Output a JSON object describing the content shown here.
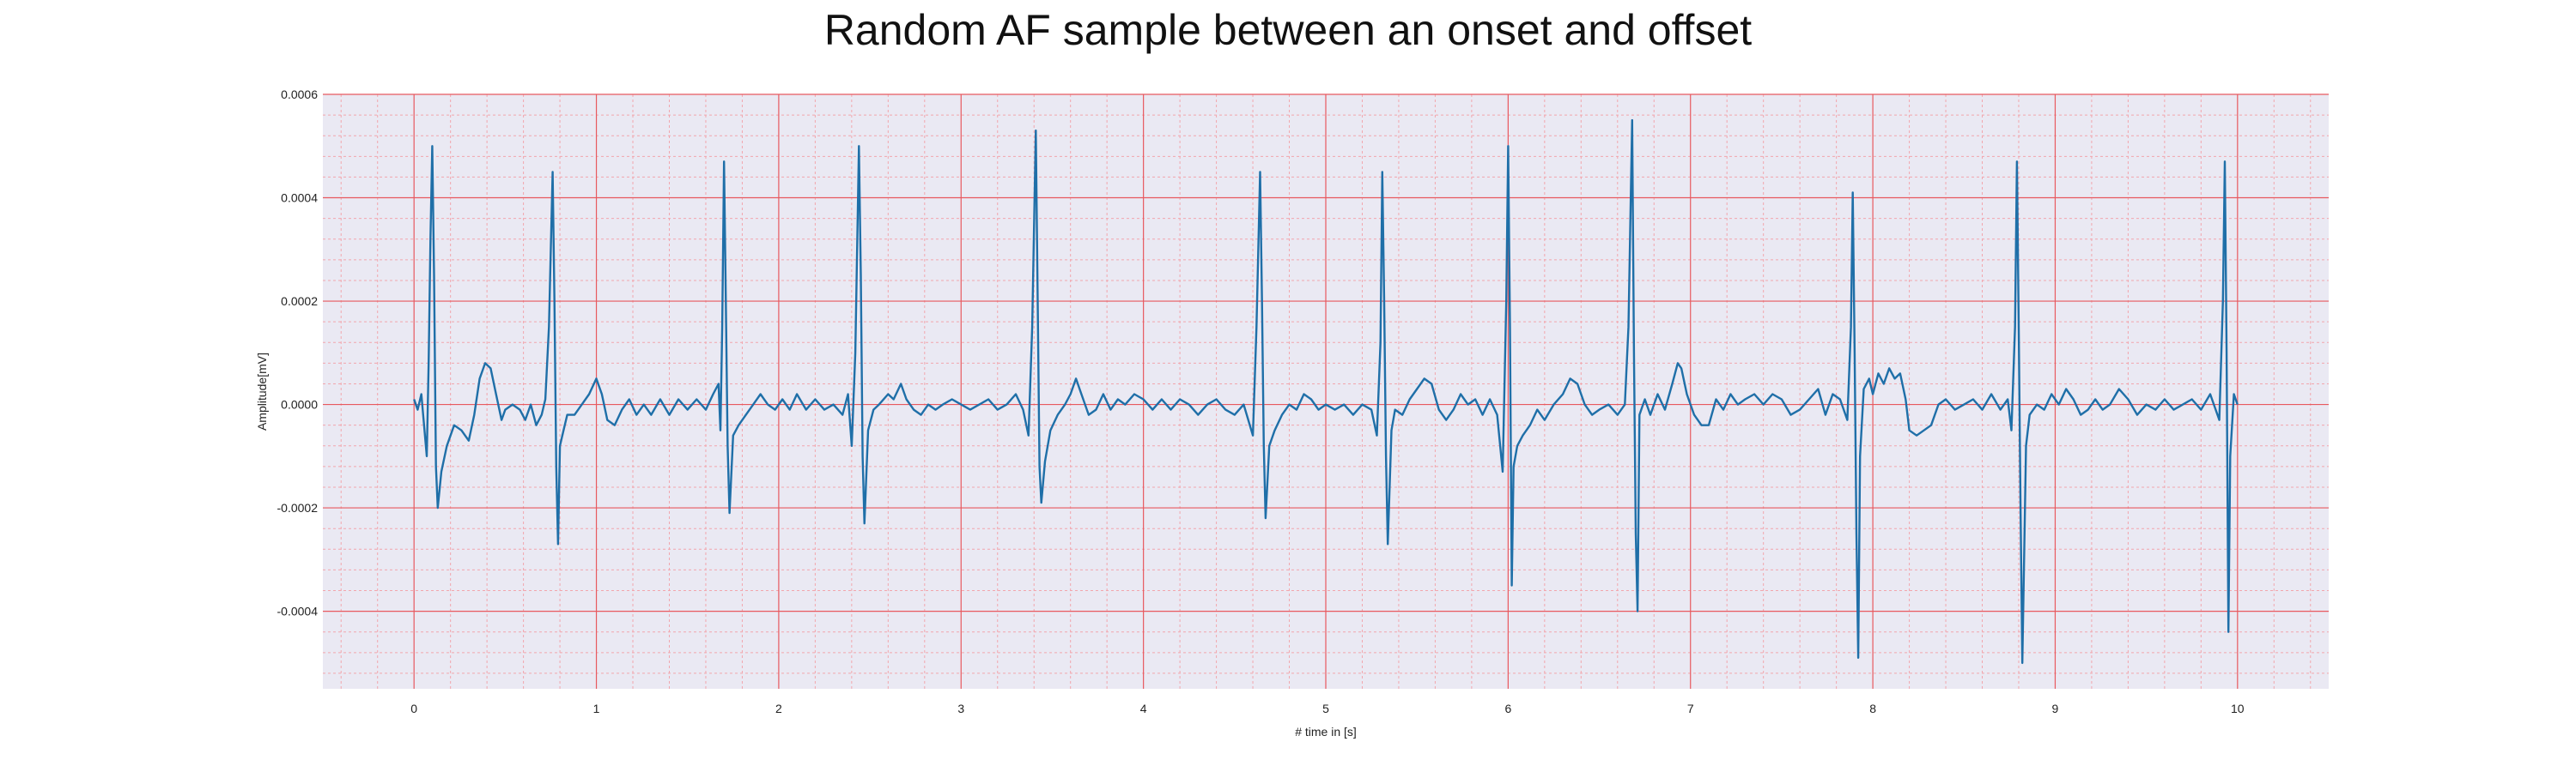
{
  "chart_data": {
    "type": "line",
    "title": "Random AF sample between an onset and offset",
    "xlabel": "# time in [s]",
    "ylabel": "Amplitude[mV]",
    "xlim": [
      -0.5,
      10.5
    ],
    "ylim": [
      -0.00055,
      0.0006
    ],
    "x_ticks": [
      0,
      1,
      2,
      3,
      4,
      5,
      6,
      7,
      8,
      9,
      10
    ],
    "x_tick_labels": [
      "0",
      "1",
      "2",
      "3",
      "4",
      "5",
      "6",
      "7",
      "8",
      "9",
      "10"
    ],
    "y_ticks": [
      0.0006,
      0.0004,
      0.0002,
      0.0,
      -0.0002,
      -0.0004
    ],
    "y_tick_labels": [
      "0.0006",
      "0.0004",
      "0.0002",
      "0.0000",
      "-0.0002",
      "-0.0004"
    ],
    "grid": true,
    "minor_grid": true,
    "colors": {
      "background": "#eae9f3",
      "major_grid": "#e8595f",
      "minor_grid": "#f2a6ad",
      "line": "#1f6fa8"
    },
    "series": [
      {
        "points": [
          [
            0.0,
            1e-05
          ],
          [
            0.02,
            -1e-05
          ],
          [
            0.04,
            2e-05
          ],
          [
            0.06,
            -6e-05
          ],
          [
            0.07,
            -0.0001
          ],
          [
            0.08,
            8e-05
          ],
          [
            0.09,
            0.00032
          ],
          [
            0.1,
            0.0005
          ],
          [
            0.11,
            0.00025
          ],
          [
            0.12,
            -0.00012
          ],
          [
            0.13,
            -0.0002
          ],
          [
            0.15,
            -0.00013
          ],
          [
            0.18,
            -8e-05
          ],
          [
            0.22,
            -4e-05
          ],
          [
            0.26,
            -5e-05
          ],
          [
            0.3,
            -7e-05
          ],
          [
            0.33,
            -2e-05
          ],
          [
            0.36,
            5e-05
          ],
          [
            0.39,
            8e-05
          ],
          [
            0.42,
            7e-05
          ],
          [
            0.45,
            2e-05
          ],
          [
            0.48,
            -3e-05
          ],
          [
            0.5,
            -1e-05
          ],
          [
            0.54,
            0.0
          ],
          [
            0.58,
            -1e-05
          ],
          [
            0.61,
            -3e-05
          ],
          [
            0.64,
            0.0
          ],
          [
            0.67,
            -4e-05
          ],
          [
            0.7,
            -2e-05
          ],
          [
            0.72,
            1e-05
          ],
          [
            0.74,
            0.00015
          ],
          [
            0.76,
            0.00045
          ],
          [
            0.77,
            0.0002
          ],
          [
            0.78,
            -0.00012
          ],
          [
            0.79,
            -0.00027
          ],
          [
            0.8,
            -8e-05
          ],
          [
            0.82,
            -5e-05
          ],
          [
            0.84,
            -2e-05
          ],
          [
            0.88,
            -2e-05
          ],
          [
            0.92,
            0.0
          ],
          [
            0.96,
            2e-05
          ],
          [
            1.0,
            5e-05
          ],
          [
            1.03,
            2e-05
          ],
          [
            1.06,
            -3e-05
          ],
          [
            1.1,
            -4e-05
          ],
          [
            1.14,
            -1e-05
          ],
          [
            1.18,
            1e-05
          ],
          [
            1.22,
            -2e-05
          ],
          [
            1.26,
            0.0
          ],
          [
            1.3,
            -2e-05
          ],
          [
            1.35,
            1e-05
          ],
          [
            1.4,
            -2e-05
          ],
          [
            1.45,
            1e-05
          ],
          [
            1.5,
            -1e-05
          ],
          [
            1.55,
            1e-05
          ],
          [
            1.6,
            -1e-05
          ],
          [
            1.64,
            2e-05
          ],
          [
            1.67,
            4e-05
          ],
          [
            1.68,
            -5e-05
          ],
          [
            1.69,
            0.00015
          ],
          [
            1.7,
            0.00047
          ],
          [
            1.71,
            0.0002
          ],
          [
            1.72,
            -8e-05
          ],
          [
            1.73,
            -0.00021
          ],
          [
            1.75,
            -6e-05
          ],
          [
            1.78,
            -4e-05
          ],
          [
            1.82,
            -2e-05
          ],
          [
            1.86,
            0.0
          ],
          [
            1.9,
            2e-05
          ],
          [
            1.94,
            0.0
          ],
          [
            1.98,
            -1e-05
          ],
          [
            2.02,
            1e-05
          ],
          [
            2.06,
            -1e-05
          ],
          [
            2.1,
            2e-05
          ],
          [
            2.15,
            -1e-05
          ],
          [
            2.2,
            1e-05
          ],
          [
            2.25,
            -1e-05
          ],
          [
            2.3,
            0.0
          ],
          [
            2.35,
            -2e-05
          ],
          [
            2.38,
            2e-05
          ],
          [
            2.4,
            -8e-05
          ],
          [
            2.42,
            0.0001
          ],
          [
            2.44,
            0.0005
          ],
          [
            2.45,
            0.00025
          ],
          [
            2.46,
            -0.0001
          ],
          [
            2.47,
            -0.00023
          ],
          [
            2.49,
            -5e-05
          ],
          [
            2.52,
            -1e-05
          ],
          [
            2.55,
            0.0
          ],
          [
            2.6,
            2e-05
          ],
          [
            2.63,
            1e-05
          ],
          [
            2.67,
            4e-05
          ],
          [
            2.7,
            1e-05
          ],
          [
            2.74,
            -1e-05
          ],
          [
            2.78,
            -2e-05
          ],
          [
            2.82,
            0.0
          ],
          [
            2.86,
            -1e-05
          ],
          [
            2.9,
            0.0
          ],
          [
            2.95,
            1e-05
          ],
          [
            3.0,
            0.0
          ],
          [
            3.05,
            -1e-05
          ],
          [
            3.1,
            0.0
          ],
          [
            3.15,
            1e-05
          ],
          [
            3.2,
            -1e-05
          ],
          [
            3.25,
            0.0
          ],
          [
            3.3,
            2e-05
          ],
          [
            3.34,
            -1e-05
          ],
          [
            3.37,
            -6e-05
          ],
          [
            3.39,
            0.00015
          ],
          [
            3.41,
            0.00053
          ],
          [
            3.42,
            0.0002
          ],
          [
            3.43,
            -0.00012
          ],
          [
            3.44,
            -0.00019
          ],
          [
            3.46,
            -0.00011
          ],
          [
            3.49,
            -5e-05
          ],
          [
            3.53,
            -2e-05
          ],
          [
            3.57,
            0.0
          ],
          [
            3.6,
            2e-05
          ],
          [
            3.63,
            5e-05
          ],
          [
            3.66,
            2e-05
          ],
          [
            3.7,
            -2e-05
          ],
          [
            3.74,
            -1e-05
          ],
          [
            3.78,
            2e-05
          ],
          [
            3.82,
            -1e-05
          ],
          [
            3.86,
            1e-05
          ],
          [
            3.9,
            0.0
          ],
          [
            3.95,
            2e-05
          ],
          [
            4.0,
            1e-05
          ],
          [
            4.05,
            -1e-05
          ],
          [
            4.1,
            1e-05
          ],
          [
            4.15,
            -1e-05
          ],
          [
            4.2,
            1e-05
          ],
          [
            4.25,
            0.0
          ],
          [
            4.3,
            -2e-05
          ],
          [
            4.35,
            0.0
          ],
          [
            4.4,
            1e-05
          ],
          [
            4.45,
            -1e-05
          ],
          [
            4.5,
            -2e-05
          ],
          [
            4.55,
            0.0
          ],
          [
            4.6,
            -6e-05
          ],
          [
            4.62,
            0.00015
          ],
          [
            4.64,
            0.00045
          ],
          [
            4.65,
            0.0002
          ],
          [
            4.66,
            -8e-05
          ],
          [
            4.67,
            -0.00022
          ],
          [
            4.69,
            -8e-05
          ],
          [
            4.72,
            -5e-05
          ],
          [
            4.76,
            -2e-05
          ],
          [
            4.8,
            0.0
          ],
          [
            4.84,
            -1e-05
          ],
          [
            4.88,
            2e-05
          ],
          [
            4.92,
            1e-05
          ],
          [
            4.96,
            -1e-05
          ],
          [
            5.0,
            0.0
          ],
          [
            5.05,
            -1e-05
          ],
          [
            5.1,
            0.0
          ],
          [
            5.15,
            -2e-05
          ],
          [
            5.2,
            0.0
          ],
          [
            5.25,
            -1e-05
          ],
          [
            5.28,
            -6e-05
          ],
          [
            5.3,
            0.00012
          ],
          [
            5.31,
            0.00045
          ],
          [
            5.32,
            0.0002
          ],
          [
            5.33,
            -0.0001
          ],
          [
            5.34,
            -0.00027
          ],
          [
            5.36,
            -5e-05
          ],
          [
            5.38,
            -1e-05
          ],
          [
            5.42,
            -2e-05
          ],
          [
            5.46,
            1e-05
          ],
          [
            5.5,
            3e-05
          ],
          [
            5.54,
            5e-05
          ],
          [
            5.58,
            4e-05
          ],
          [
            5.62,
            -1e-05
          ],
          [
            5.66,
            -3e-05
          ],
          [
            5.7,
            -1e-05
          ],
          [
            5.74,
            2e-05
          ],
          [
            5.78,
            0.0
          ],
          [
            5.82,
            1e-05
          ],
          [
            5.86,
            -2e-05
          ],
          [
            5.9,
            1e-05
          ],
          [
            5.94,
            -2e-05
          ],
          [
            5.97,
            -0.00013
          ],
          [
            5.99,
            0.0002
          ],
          [
            6.0,
            0.0005
          ],
          [
            6.01,
            0.00015
          ],
          [
            6.02,
            -0.00035
          ],
          [
            6.03,
            -0.00012
          ],
          [
            6.05,
            -8e-05
          ],
          [
            6.08,
            -6e-05
          ],
          [
            6.12,
            -4e-05
          ],
          [
            6.16,
            -1e-05
          ],
          [
            6.2,
            -3e-05
          ],
          [
            6.25,
            0.0
          ],
          [
            6.3,
            2e-05
          ],
          [
            6.34,
            5e-05
          ],
          [
            6.38,
            4e-05
          ],
          [
            6.42,
            0.0
          ],
          [
            6.46,
            -2e-05
          ],
          [
            6.5,
            -1e-05
          ],
          [
            6.55,
            0.0
          ],
          [
            6.6,
            -2e-05
          ],
          [
            6.64,
            0.0
          ],
          [
            6.66,
            0.00015
          ],
          [
            6.68,
            0.00055
          ],
          [
            6.69,
            0.0001
          ],
          [
            6.7,
            -0.00025
          ],
          [
            6.71,
            -0.0004
          ],
          [
            6.72,
            -2e-05
          ],
          [
            6.75,
            1e-05
          ],
          [
            6.78,
            -2e-05
          ],
          [
            6.82,
            2e-05
          ],
          [
            6.86,
            -1e-05
          ],
          [
            6.9,
            4e-05
          ],
          [
            6.93,
            8e-05
          ],
          [
            6.95,
            7e-05
          ],
          [
            6.98,
            2e-05
          ],
          [
            7.02,
            -2e-05
          ],
          [
            7.06,
            -4e-05
          ],
          [
            7.1,
            -4e-05
          ],
          [
            7.14,
            1e-05
          ],
          [
            7.18,
            -1e-05
          ],
          [
            7.22,
            2e-05
          ],
          [
            7.26,
            0.0
          ],
          [
            7.3,
            1e-05
          ],
          [
            7.35,
            2e-05
          ],
          [
            7.4,
            0.0
          ],
          [
            7.45,
            2e-05
          ],
          [
            7.5,
            1e-05
          ],
          [
            7.55,
            -2e-05
          ],
          [
            7.6,
            -1e-05
          ],
          [
            7.65,
            1e-05
          ],
          [
            7.7,
            3e-05
          ],
          [
            7.74,
            -2e-05
          ],
          [
            7.78,
            2e-05
          ],
          [
            7.82,
            1e-05
          ],
          [
            7.86,
            -3e-05
          ],
          [
            7.88,
            0.00015
          ],
          [
            7.89,
            0.00041
          ],
          [
            7.9,
            0.0001
          ],
          [
            7.91,
            -0.00025
          ],
          [
            7.92,
            -0.00049
          ],
          [
            7.93,
            -0.0001
          ],
          [
            7.95,
            3e-05
          ],
          [
            7.98,
            5e-05
          ],
          [
            8.0,
            2e-05
          ],
          [
            8.03,
            6e-05
          ],
          [
            8.06,
            4e-05
          ],
          [
            8.09,
            7e-05
          ],
          [
            8.12,
            5e-05
          ],
          [
            8.15,
            6e-05
          ],
          [
            8.18,
            1e-05
          ],
          [
            8.2,
            -5e-05
          ],
          [
            8.24,
            -6e-05
          ],
          [
            8.28,
            -5e-05
          ],
          [
            8.32,
            -4e-05
          ],
          [
            8.36,
            0.0
          ],
          [
            8.4,
            1e-05
          ],
          [
            8.45,
            -1e-05
          ],
          [
            8.5,
            0.0
          ],
          [
            8.55,
            1e-05
          ],
          [
            8.6,
            -1e-05
          ],
          [
            8.65,
            2e-05
          ],
          [
            8.7,
            -1e-05
          ],
          [
            8.74,
            1e-05
          ],
          [
            8.76,
            -5e-05
          ],
          [
            8.78,
            0.00015
          ],
          [
            8.79,
            0.00047
          ],
          [
            8.8,
            0.00015
          ],
          [
            8.81,
            -0.0002
          ],
          [
            8.82,
            -0.0005
          ],
          [
            8.84,
            -8e-05
          ],
          [
            8.86,
            -2e-05
          ],
          [
            8.9,
            0.0
          ],
          [
            8.94,
            -1e-05
          ],
          [
            8.98,
            2e-05
          ],
          [
            9.02,
            0.0
          ],
          [
            9.06,
            3e-05
          ],
          [
            9.1,
            1e-05
          ],
          [
            9.14,
            -2e-05
          ],
          [
            9.18,
            -1e-05
          ],
          [
            9.22,
            1e-05
          ],
          [
            9.26,
            -1e-05
          ],
          [
            9.3,
            0.0
          ],
          [
            9.35,
            3e-05
          ],
          [
            9.4,
            1e-05
          ],
          [
            9.45,
            -2e-05
          ],
          [
            9.5,
            0.0
          ],
          [
            9.55,
            -1e-05
          ],
          [
            9.6,
            1e-05
          ],
          [
            9.65,
            -1e-05
          ],
          [
            9.7,
            0.0
          ],
          [
            9.75,
            1e-05
          ],
          [
            9.8,
            -1e-05
          ],
          [
            9.85,
            2e-05
          ],
          [
            9.9,
            -3e-05
          ],
          [
            9.92,
            0.0002
          ],
          [
            9.93,
            0.00047
          ],
          [
            9.94,
            0.0001
          ],
          [
            9.95,
            -0.00044
          ],
          [
            9.96,
            -0.0001
          ],
          [
            9.98,
            2e-05
          ],
          [
            10.0,
            0.0
          ]
        ]
      }
    ]
  }
}
